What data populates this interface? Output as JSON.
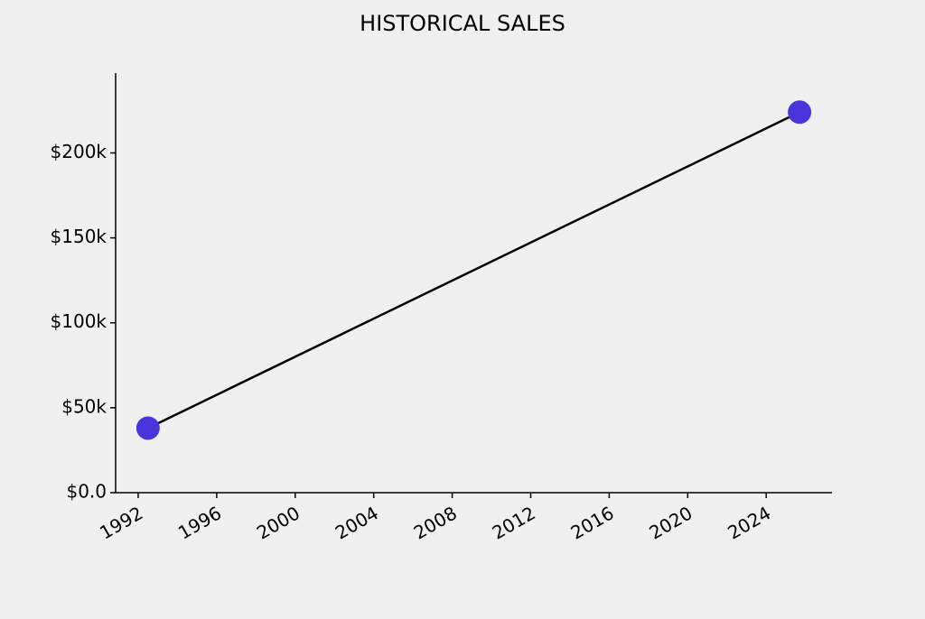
{
  "chart_data": {
    "type": "line",
    "title": "HISTORICAL SALES",
    "x": [
      1992.5,
      2025.7
    ],
    "values": [
      38000,
      224000
    ],
    "color": "#4a35db",
    "line_color": "#000000",
    "xlim": [
      1990.85,
      2027.35
    ],
    "xticks": [
      1992,
      1996,
      2000,
      2004,
      2008,
      2012,
      2016,
      2020,
      2024
    ],
    "ylim": [
      0,
      247000
    ],
    "yticks": [
      {
        "value": 0,
        "label": "$0.0"
      },
      {
        "value": 50000,
        "label": "$50k"
      },
      {
        "value": 100000,
        "label": "$100k"
      },
      {
        "value": 150000,
        "label": "$150k"
      },
      {
        "value": 200000,
        "label": "$200k"
      }
    ]
  }
}
